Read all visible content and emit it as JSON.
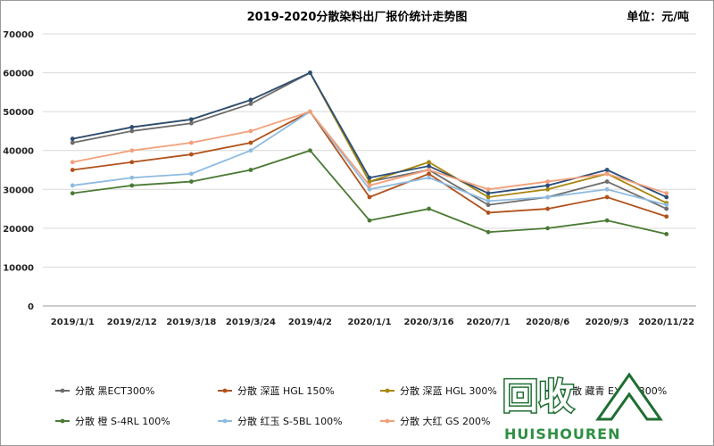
{
  "chart_data": {
    "type": "line",
    "title": "2019-2020分散染料出厂报价统计走势图",
    "unit": "单位：元/吨",
    "ylim": [
      0,
      70000
    ],
    "yticks": [
      0,
      10000,
      20000,
      30000,
      40000,
      50000,
      60000,
      70000
    ],
    "grid": true,
    "legend_position": "bottom",
    "categories": [
      "2019/1/1",
      "2019/2/12",
      "2019/3/18",
      "2019/3/24",
      "2019/4/2",
      "2020/1/1",
      "2020/3/16",
      "2020/7/1",
      "2020/8/6",
      "2020/9/3",
      "2020/11/22"
    ],
    "series": [
      {
        "name": "分散 黑ECT300%",
        "color": "#6d6d6d",
        "values": [
          42000,
          45000,
          47000,
          52000,
          60000,
          32000,
          35000,
          26000,
          28000,
          32000,
          25000
        ]
      },
      {
        "name": "分散 深蓝 HGL 150%",
        "color": "#b1521c",
        "values": [
          35000,
          37000,
          39000,
          42000,
          50000,
          28000,
          34000,
          24000,
          25000,
          28000,
          23000
        ]
      },
      {
        "name": "分散 深蓝 HGL 300%",
        "color": "#a8860c",
        "values": [
          43000,
          46000,
          48000,
          53000,
          60000,
          32000,
          37000,
          28000,
          30000,
          34000,
          26500
        ]
      },
      {
        "name": "分散 藏青 EX-SF 300%",
        "color": "#2c4f78",
        "values": [
          43000,
          46000,
          48000,
          53000,
          60000,
          33000,
          36000,
          29000,
          31000,
          35000,
          28000
        ]
      },
      {
        "name": "分散 橙 S-4RL 100%",
        "color": "#4b7a34",
        "values": [
          29000,
          31000,
          32000,
          35000,
          40000,
          22000,
          25000,
          19000,
          20000,
          22000,
          18500
        ]
      },
      {
        "name": "分散 红玉 S-5BL 100%",
        "color": "#8fbbe0",
        "values": [
          31000,
          33000,
          34000,
          40000,
          50000,
          30000,
          33000,
          27000,
          28000,
          30000,
          26000
        ]
      },
      {
        "name": "分散 大红 GS 200%",
        "color": "#f2a07b",
        "values": [
          37000,
          40000,
          42000,
          45000,
          50000,
          31000,
          35000,
          30000,
          32000,
          34000,
          29000
        ]
      }
    ]
  },
  "watermark": {
    "main": "回收",
    "sub": "HUISHOUREN"
  }
}
